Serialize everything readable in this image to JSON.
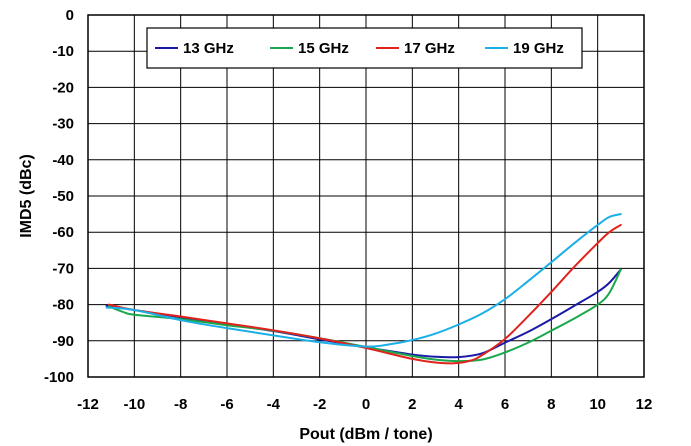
{
  "chart_data": {
    "type": "line",
    "title": "",
    "xlabel": "Pout (dBm / tone)",
    "ylabel": "IMD5 (dBc)",
    "xlim": [
      -12,
      12
    ],
    "ylim": [
      -100,
      0
    ],
    "xticks": [
      -12,
      -10,
      -8,
      -6,
      -4,
      -2,
      0,
      2,
      4,
      6,
      8,
      10,
      12
    ],
    "xtick_labels": [
      "-12",
      "-10",
      "-8",
      "-6",
      "-4",
      "-2",
      "0",
      "2",
      "4",
      "6",
      "8",
      "10",
      "12"
    ],
    "yticks": [
      0,
      -10,
      -20,
      -30,
      -40,
      -50,
      -60,
      -70,
      -80,
      -90,
      -100
    ],
    "ytick_labels": [
      "0",
      "-10",
      "-20",
      "-30",
      "-40",
      "-50",
      "-60",
      "-70",
      "-80",
      "-90",
      "-100"
    ],
    "grid": true,
    "legend_position": "top-center",
    "series": [
      {
        "name": "13 GHz",
        "color": "#1a1aa8",
        "points": [
          [
            -11.2,
            -80.3
          ],
          [
            -10,
            -81.5
          ],
          [
            -8,
            -83.5
          ],
          [
            -6,
            -85.5
          ],
          [
            -4,
            -87.3
          ],
          [
            -2,
            -89.6
          ],
          [
            0,
            -91.8
          ],
          [
            1,
            -92.8
          ],
          [
            2,
            -93.8
          ],
          [
            3,
            -94.4
          ],
          [
            4,
            -94.5
          ],
          [
            5,
            -93.5
          ],
          [
            6,
            -90.5
          ],
          [
            7,
            -87.5
          ],
          [
            8,
            -84
          ],
          [
            9,
            -80.3
          ],
          [
            10,
            -76.5
          ],
          [
            10.5,
            -74
          ],
          [
            11,
            -70.3
          ]
        ]
      },
      {
        "name": "15 GHz",
        "color": "#1aa84c",
        "points": [
          [
            -11.1,
            -80.5
          ],
          [
            -10.5,
            -82
          ],
          [
            -10,
            -82.8
          ],
          [
            -8,
            -84
          ],
          [
            -6,
            -85.7
          ],
          [
            -4,
            -87.2
          ],
          [
            -2,
            -89.3
          ],
          [
            0,
            -91.7
          ],
          [
            2,
            -94.2
          ],
          [
            3,
            -95.2
          ],
          [
            4,
            -95.6
          ],
          [
            5,
            -95.2
          ],
          [
            6,
            -93.2
          ],
          [
            7,
            -90.5
          ],
          [
            8,
            -87.2
          ],
          [
            9,
            -83.8
          ],
          [
            10,
            -80
          ],
          [
            10.5,
            -76.8
          ],
          [
            11,
            -70.3
          ]
        ]
      },
      {
        "name": "17 GHz",
        "color": "#e0231c",
        "points": [
          [
            -11.1,
            -80
          ],
          [
            -10,
            -81.5
          ],
          [
            -8,
            -83.3
          ],
          [
            -6,
            -85.2
          ],
          [
            -4,
            -87.1
          ],
          [
            -2,
            -89.3
          ],
          [
            0,
            -92
          ],
          [
            1,
            -93.5
          ],
          [
            2,
            -95
          ],
          [
            3,
            -96
          ],
          [
            3.8,
            -96.2
          ],
          [
            4.5,
            -95.5
          ],
          [
            5,
            -94
          ],
          [
            6,
            -89.5
          ],
          [
            7,
            -83.2
          ],
          [
            8,
            -76.5
          ],
          [
            9,
            -69.5
          ],
          [
            10,
            -63
          ],
          [
            10.5,
            -60
          ],
          [
            11,
            -58
          ]
        ]
      },
      {
        "name": "19 GHz",
        "color": "#1aafe6",
        "points": [
          [
            -11.2,
            -80.8
          ],
          [
            -10,
            -81.5
          ],
          [
            -8,
            -84.3
          ],
          [
            -6,
            -86.5
          ],
          [
            -4,
            -88.5
          ],
          [
            -2,
            -90.4
          ],
          [
            0,
            -91.6
          ],
          [
            1,
            -91
          ],
          [
            2,
            -89.8
          ],
          [
            3,
            -88
          ],
          [
            4,
            -85.5
          ],
          [
            5,
            -82.5
          ],
          [
            6,
            -78.5
          ],
          [
            7,
            -73.5
          ],
          [
            8,
            -68.3
          ],
          [
            9,
            -63
          ],
          [
            10,
            -58
          ],
          [
            10.5,
            -55.8
          ],
          [
            11,
            -55
          ]
        ]
      }
    ]
  }
}
